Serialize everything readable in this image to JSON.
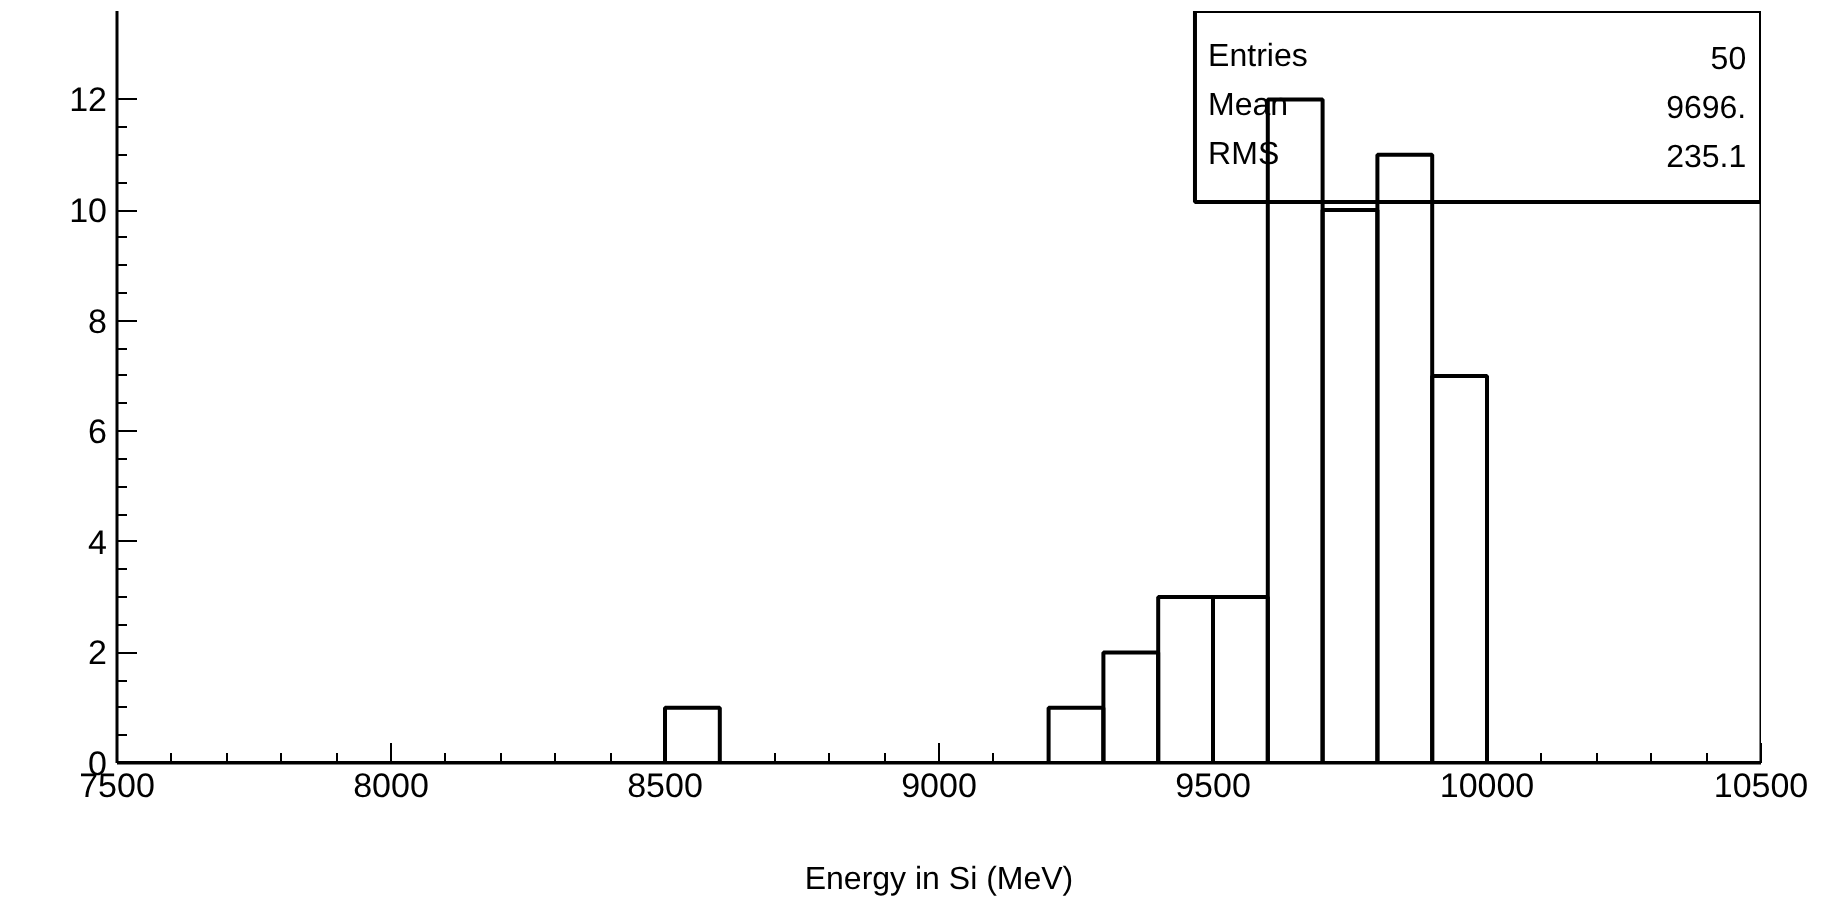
{
  "chart_data": {
    "type": "histogram",
    "xlabel": "Energy in Si (MeV)",
    "bins": [
      7500,
      7600,
      7700,
      7800,
      7900,
      8000,
      8100,
      8200,
      8300,
      8400,
      8500,
      8600,
      8700,
      8800,
      8900,
      9000,
      9100,
      9200,
      9300,
      9400,
      9500,
      9600,
      9700,
      9800,
      9900,
      10000,
      10100,
      10200,
      10300,
      10400,
      10500
    ],
    "values": [
      0,
      0,
      0,
      0,
      0,
      0,
      0,
      0,
      0,
      0,
      1,
      0,
      0,
      0,
      0,
      0,
      0,
      1,
      2,
      3,
      3,
      12,
      10,
      11,
      7,
      0,
      0,
      0,
      0,
      0
    ],
    "color": "#000000",
    "xlim": [
      7500,
      10500
    ],
    "xticks": [
      7500,
      8000,
      8500,
      9000,
      9500,
      10000,
      10500
    ],
    "ylim": [
      0,
      13.6
    ],
    "yticks": [
      0,
      2,
      4,
      6,
      8,
      10,
      12
    ],
    "grid": false,
    "annotations": [
      "Entries",
      "50",
      "Mean",
      "9696.",
      "RMS",
      "235.1"
    ]
  }
}
